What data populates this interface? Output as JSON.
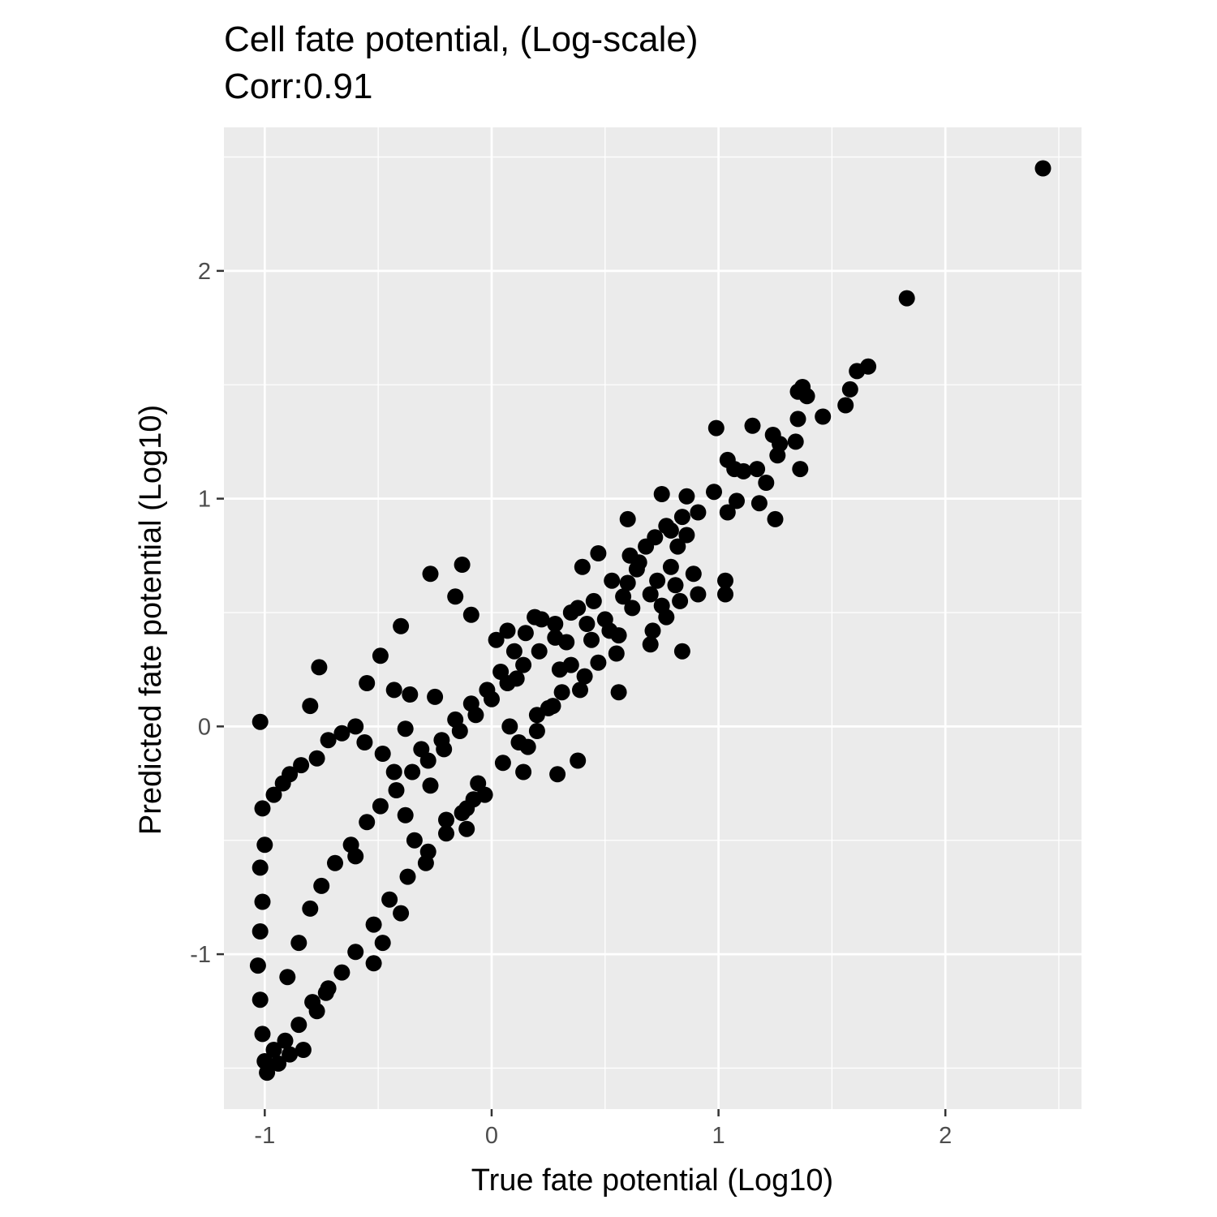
{
  "chart_data": {
    "type": "scatter",
    "title": "Cell fate potential, (Log-scale)",
    "subtitle": "Corr:0.91",
    "xlabel": "True fate potential (Log10)",
    "ylabel": "Predicted fate potential (Log10)",
    "xlim": [
      -1.18,
      2.6
    ],
    "ylim": [
      -1.68,
      2.63
    ],
    "x_ticks": [
      {
        "value": -1,
        "label": "-1"
      },
      {
        "value": 0,
        "label": "0"
      },
      {
        "value": 1,
        "label": "1"
      },
      {
        "value": 2,
        "label": "2"
      }
    ],
    "y_ticks": [
      {
        "value": -1,
        "label": "-1"
      },
      {
        "value": 0,
        "label": "0"
      },
      {
        "value": 1,
        "label": "1"
      },
      {
        "value": 2,
        "label": "2"
      }
    ],
    "grid": true,
    "panel_background": "#ebebeb",
    "grid_color": "#ffffff",
    "point_color": "#000000",
    "points": [
      [
        2.43,
        2.45
      ],
      [
        1.83,
        1.88
      ],
      [
        1.66,
        1.58
      ],
      [
        1.61,
        1.56
      ],
      [
        1.58,
        1.48
      ],
      [
        1.56,
        1.41
      ],
      [
        1.37,
        1.49
      ],
      [
        1.35,
        1.47
      ],
      [
        1.39,
        1.45
      ],
      [
        1.46,
        1.36
      ],
      [
        1.35,
        1.35
      ],
      [
        1.34,
        1.25
      ],
      [
        1.27,
        1.24
      ],
      [
        1.26,
        1.19
      ],
      [
        1.24,
        1.28
      ],
      [
        1.15,
        1.32
      ],
      [
        0.99,
        1.31
      ],
      [
        1.04,
        1.17
      ],
      [
        1.07,
        1.13
      ],
      [
        1.11,
        1.12
      ],
      [
        1.17,
        1.13
      ],
      [
        1.36,
        1.13
      ],
      [
        1.21,
        1.07
      ],
      [
        1.08,
        0.99
      ],
      [
        1.04,
        0.94
      ],
      [
        1.18,
        0.98
      ],
      [
        1.25,
        0.91
      ],
      [
        0.75,
        1.02
      ],
      [
        0.86,
        1.01
      ],
      [
        0.98,
        1.03
      ],
      [
        0.6,
        0.91
      ],
      [
        0.91,
        0.94
      ],
      [
        0.84,
        0.92
      ],
      [
        0.77,
        0.88
      ],
      [
        0.79,
        0.86
      ],
      [
        0.72,
        0.83
      ],
      [
        0.86,
        0.84
      ],
      [
        0.82,
        0.79
      ],
      [
        0.61,
        0.75
      ],
      [
        0.65,
        0.72
      ],
      [
        0.47,
        0.76
      ],
      [
        0.4,
        0.7
      ],
      [
        0.53,
        0.64
      ],
      [
        0.6,
        0.63
      ],
      [
        0.7,
        0.58
      ],
      [
        0.75,
        0.53
      ],
      [
        0.83,
        0.55
      ],
      [
        0.91,
        0.58
      ],
      [
        1.03,
        0.64
      ],
      [
        1.03,
        0.58
      ],
      [
        0.89,
        0.67
      ],
      [
        0.77,
        0.48
      ],
      [
        0.71,
        0.42
      ],
      [
        0.84,
        0.33
      ],
      [
        0.56,
        0.4
      ],
      [
        0.7,
        0.36
      ],
      [
        0.56,
        0.15
      ],
      [
        0.38,
        0.52
      ],
      [
        0.42,
        0.45
      ],
      [
        0.3,
        0.25
      ],
      [
        0.39,
        0.16
      ],
      [
        0.27,
        0.09
      ],
      [
        0.38,
        -0.15
      ],
      [
        0.29,
        -0.21
      ],
      [
        0.14,
        -0.2
      ],
      [
        -0.13,
        0.71
      ],
      [
        -0.27,
        0.67
      ],
      [
        -0.16,
        0.57
      ],
      [
        -0.4,
        0.44
      ],
      [
        -0.49,
        0.31
      ],
      [
        -0.76,
        0.26
      ],
      [
        -0.55,
        0.19
      ],
      [
        -0.8,
        0.09
      ],
      [
        -1.02,
        0.02
      ],
      [
        -0.43,
        0.16
      ],
      [
        -0.36,
        0.14
      ],
      [
        -0.25,
        0.13
      ],
      [
        -0.09,
        0.49
      ],
      [
        0.07,
        0.42
      ],
      [
        -0.38,
        -0.01
      ],
      [
        0.02,
        0.38
      ],
      [
        0.19,
        0.48
      ],
      [
        0.11,
        0.21
      ],
      [
        0.08,
        0.0
      ],
      [
        0.16,
        -0.09
      ],
      [
        0.2,
        0.05
      ],
      [
        -0.06,
        -0.25
      ],
      [
        -0.08,
        -0.32
      ],
      [
        -0.11,
        -0.45
      ],
      [
        -0.13,
        -0.38
      ],
      [
        -0.27,
        -0.26
      ],
      [
        -0.38,
        -0.39
      ],
      [
        -0.6,
        -0.57
      ],
      [
        -0.34,
        -0.5
      ],
      [
        -0.28,
        -0.55
      ],
      [
        -0.2,
        -0.41
      ],
      [
        -0.4,
        -0.82
      ],
      [
        -0.48,
        -0.95
      ],
      [
        -0.52,
        -1.04
      ],
      [
        -0.73,
        -1.17
      ],
      [
        -0.77,
        -1.25
      ],
      [
        -0.83,
        -1.42
      ],
      [
        -0.89,
        -1.44
      ],
      [
        -0.94,
        -1.48
      ],
      [
        -0.99,
        -1.52
      ],
      [
        -1.0,
        -1.47
      ],
      [
        -1.01,
        -1.35
      ],
      [
        -1.02,
        -1.2
      ],
      [
        -1.03,
        -1.05
      ],
      [
        -1.02,
        -0.9
      ],
      [
        -1.01,
        -0.77
      ],
      [
        -1.02,
        -0.62
      ],
      [
        -1.0,
        -0.52
      ],
      [
        -1.01,
        -0.36
      ],
      [
        -0.96,
        -0.3
      ],
      [
        -0.92,
        -0.25
      ],
      [
        -0.89,
        -0.21
      ],
      [
        -0.84,
        -0.17
      ],
      [
        -0.77,
        -0.14
      ],
      [
        -0.72,
        -0.06
      ],
      [
        -0.66,
        -0.03
      ],
      [
        -0.6,
        0.0
      ],
      [
        -0.56,
        -0.07
      ],
      [
        -0.48,
        -0.12
      ],
      [
        -0.43,
        -0.2
      ],
      [
        -0.31,
        -0.1
      ],
      [
        -0.22,
        -0.06
      ],
      [
        -0.16,
        0.03
      ],
      [
        -0.09,
        0.1
      ],
      [
        -0.02,
        0.16
      ],
      [
        0.04,
        0.24
      ],
      [
        0.1,
        0.33
      ],
      [
        0.15,
        0.41
      ],
      [
        0.22,
        0.47
      ],
      [
        0.28,
        0.45
      ],
      [
        0.33,
        0.37
      ],
      [
        0.35,
        0.27
      ],
      [
        0.31,
        0.15
      ],
      [
        0.25,
        0.08
      ],
      [
        0.2,
        -0.02
      ],
      [
        0.12,
        -0.07
      ],
      [
        0.05,
        -0.16
      ],
      [
        -0.03,
        -0.3
      ],
      [
        -0.11,
        -0.36
      ],
      [
        -0.2,
        -0.47
      ],
      [
        -0.29,
        -0.6
      ],
      [
        -0.37,
        -0.66
      ],
      [
        -0.45,
        -0.76
      ],
      [
        -0.52,
        -0.87
      ],
      [
        -0.6,
        -0.99
      ],
      [
        -0.66,
        -1.08
      ],
      [
        -0.72,
        -1.15
      ],
      [
        -0.79,
        -1.21
      ],
      [
        -0.85,
        -1.31
      ],
      [
        -0.91,
        -1.38
      ],
      [
        -0.96,
        -1.42
      ],
      [
        -0.9,
        -1.1
      ],
      [
        -0.85,
        -0.95
      ],
      [
        -0.8,
        -0.8
      ],
      [
        -0.75,
        -0.7
      ],
      [
        -0.69,
        -0.6
      ],
      [
        -0.62,
        -0.52
      ],
      [
        -0.55,
        -0.42
      ],
      [
        -0.49,
        -0.35
      ],
      [
        -0.42,
        -0.28
      ],
      [
        -0.35,
        -0.2
      ],
      [
        -0.28,
        -0.15
      ],
      [
        -0.21,
        -0.1
      ],
      [
        -0.14,
        -0.02
      ],
      [
        -0.07,
        0.05
      ],
      [
        0.0,
        0.12
      ],
      [
        0.07,
        0.19
      ],
      [
        0.14,
        0.27
      ],
      [
        0.21,
        0.33
      ],
      [
        0.28,
        0.39
      ],
      [
        0.35,
        0.5
      ],
      [
        0.45,
        0.55
      ],
      [
        0.5,
        0.47
      ],
      [
        0.58,
        0.57
      ],
      [
        0.64,
        0.69
      ],
      [
        0.68,
        0.79
      ],
      [
        0.73,
        0.64
      ],
      [
        0.79,
        0.7
      ],
      [
        0.81,
        0.62
      ],
      [
        0.62,
        0.52
      ],
      [
        0.55,
        0.32
      ],
      [
        0.47,
        0.28
      ],
      [
        0.44,
        0.38
      ],
      [
        0.52,
        0.42
      ],
      [
        0.41,
        0.22
      ]
    ]
  }
}
